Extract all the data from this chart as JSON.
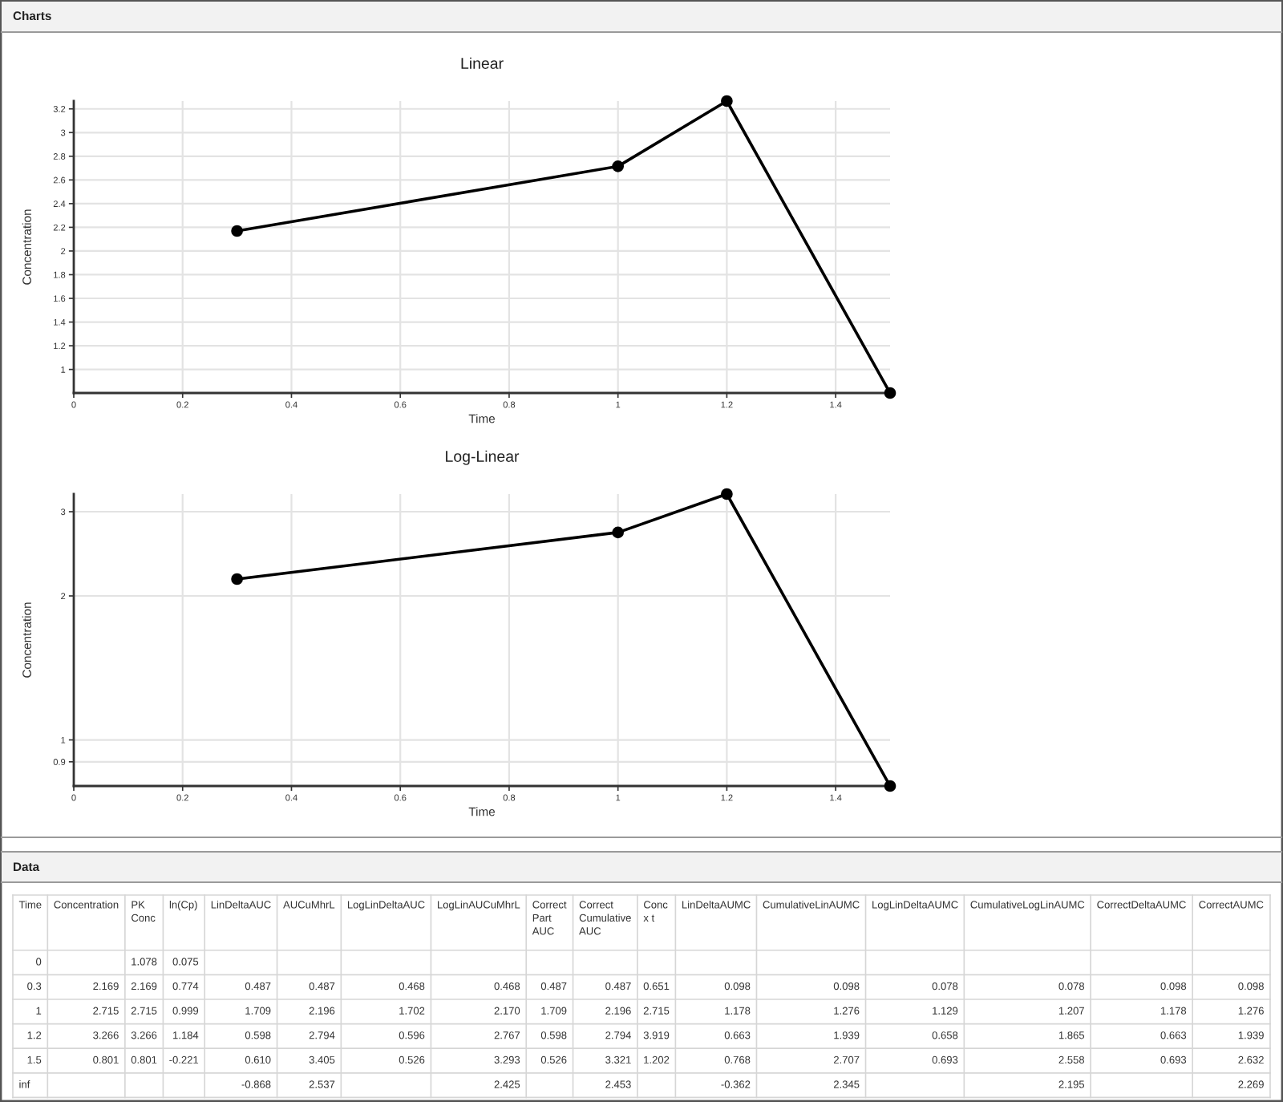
{
  "chart_data": [
    {
      "type": "line",
      "title": "Linear",
      "annotations": [
        "Charts"
      ],
      "xlabel": "Time",
      "ylabel": "Concentration",
      "x": [
        0.3,
        1,
        1.2,
        1.5
      ],
      "values": [
        2.169,
        2.715,
        3.266,
        0.801
      ],
      "color": "#000000",
      "marker": "circle",
      "line_style": "solid",
      "grid": true,
      "xlim": [
        0,
        1.5
      ],
      "xticks": [
        0,
        0.2,
        0.4,
        0.6,
        0.8,
        1,
        1.2,
        1.4
      ],
      "ylim": [
        0.801,
        3.266
      ],
      "yticks": [
        1,
        1.2,
        1.4,
        1.6,
        1.8,
        2,
        2.2,
        2.4,
        2.6,
        2.8,
        3,
        3.2
      ]
    },
    {
      "type": "line",
      "title": "Log-Linear",
      "xlabel": "Time",
      "ylabel": "Concentration",
      "x": [
        0.3,
        1,
        1.2,
        1.5
      ],
      "values": [
        2.169,
        2.715,
        3.266,
        0.801
      ],
      "color": "#000000",
      "marker": "circle",
      "line_style": "solid",
      "grid": true,
      "log": true,
      "xlim": [
        0,
        1.5
      ],
      "xticks": [
        0,
        0.2,
        0.4,
        0.6,
        0.8,
        1,
        1.2,
        1.4
      ],
      "ylim": [
        0.801,
        3.266
      ],
      "yticks": [
        0.9,
        1,
        2,
        3
      ]
    },
    {
      "type": "other",
      "title": "Data",
      "categories": [
        "Time",
        "Concentration",
        "PK Conc",
        "ln(Cp)",
        "LinDeltaAUC",
        "AUCuMhrL",
        "LogLinDeltaAUC",
        "LogLinAUCuMhrL",
        "Correct Part AUC",
        "Correct Cumulative AUC",
        "Conc x t",
        "LinDeltaAUMC",
        "CumulativeLinAUMC",
        "LogLinDeltaAUMC",
        "CumulativeLogLinAUMC",
        "CorrectDeltaAUMC",
        "CorrectAUMC"
      ],
      "cell_labels": [
        [
          "0",
          null,
          "1.078",
          "0.075",
          null,
          null,
          null,
          null,
          null,
          null,
          null,
          null,
          null,
          null,
          null,
          null,
          null
        ],
        [
          "0.3",
          "2.169",
          "2.169",
          "0.774",
          "0.487",
          "0.487",
          "0.468",
          "0.468",
          "0.487",
          "0.487",
          "0.651",
          "0.098",
          "0.098",
          "0.078",
          "0.078",
          "0.098",
          "0.098"
        ],
        [
          "1",
          "2.715",
          "2.715",
          "0.999",
          "1.709",
          "2.196",
          "1.702",
          "2.170",
          "1.709",
          "2.196",
          "2.715",
          "1.178",
          "1.276",
          "1.129",
          "1.207",
          "1.178",
          "1.276"
        ],
        [
          "1.2",
          "3.266",
          "3.266",
          "1.184",
          "0.598",
          "2.794",
          "0.596",
          "2.767",
          "0.598",
          "2.794",
          "3.919",
          "0.663",
          "1.939",
          "0.658",
          "1.865",
          "0.663",
          "1.939"
        ],
        [
          "1.5",
          "0.801",
          "0.801",
          "-0.221",
          "0.610",
          "3.405",
          "0.526",
          "3.293",
          "0.526",
          "3.321",
          "1.202",
          "0.768",
          "2.707",
          "0.693",
          "2.558",
          "0.693",
          "2.632"
        ],
        [
          "inf",
          null,
          null,
          null,
          "-0.868",
          "2.537",
          null,
          "2.425",
          null,
          "2.453",
          null,
          "-0.362",
          "2.345",
          null,
          "2.195",
          null,
          "2.269"
        ]
      ]
    }
  ]
}
